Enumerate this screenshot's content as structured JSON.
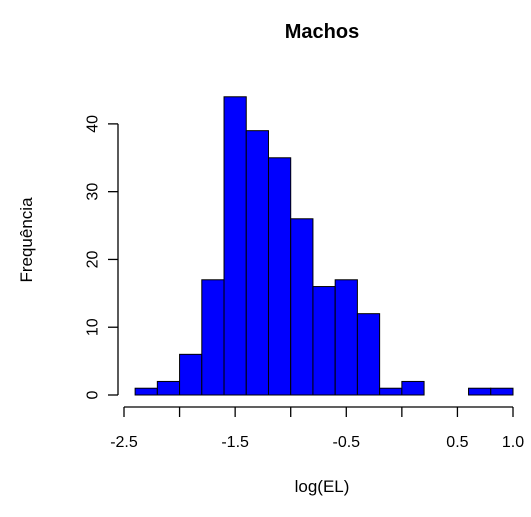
{
  "chart_data": {
    "type": "bar",
    "title": "Machos",
    "xlabel": "log(EL)",
    "ylabel": "Frequência",
    "bin_edges": [
      -2.4,
      -2.2,
      -2.0,
      -1.8,
      -1.6,
      -1.4,
      -1.2,
      -1.0,
      -0.8,
      -0.6,
      -0.4,
      -0.2,
      0.0,
      0.2,
      0.4,
      0.6,
      0.8,
      1.0
    ],
    "values": [
      1,
      2,
      6,
      17,
      44,
      39,
      35,
      26,
      16,
      17,
      12,
      1,
      2,
      0,
      0,
      1,
      1
    ],
    "x_ticks": [
      -2.5,
      -2.0,
      -1.5,
      -1.0,
      -0.5,
      0.0,
      0.5,
      1.0
    ],
    "x_tick_labels": [
      "-2.5",
      "",
      "-1.5",
      "",
      "-0.5",
      "",
      "0.5",
      "1.0"
    ],
    "y_ticks": [
      0,
      10,
      20,
      30,
      40
    ],
    "y_tick_labels": [
      "0",
      "10",
      "20",
      "30",
      "40"
    ],
    "xlim": [
      -2.5,
      1.0
    ],
    "ylim": [
      0,
      45
    ],
    "bar_color": "#0000ff",
    "grid": false,
    "legend": "none"
  }
}
